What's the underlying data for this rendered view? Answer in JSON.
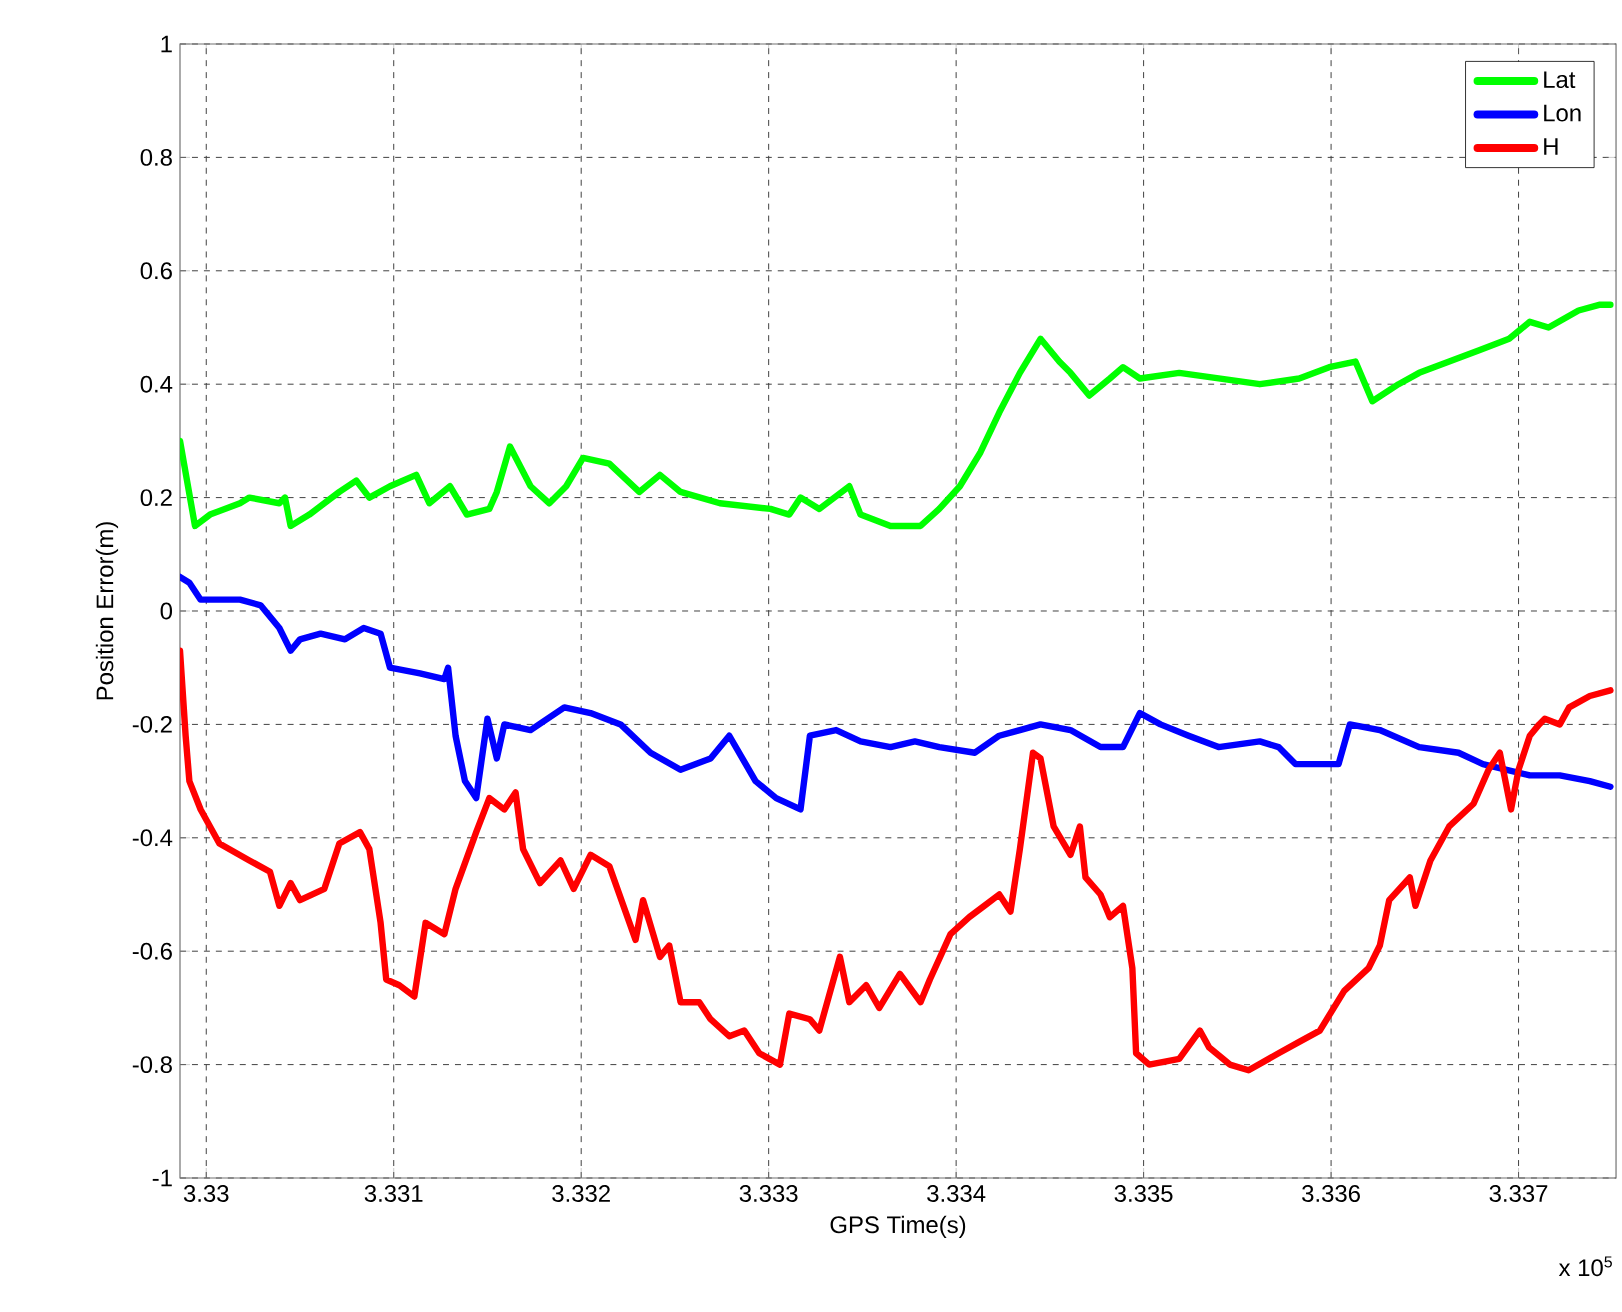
{
  "chart_data": {
    "type": "line",
    "xlabel": "GPS Time(s)",
    "ylabel": "Position Error(m)",
    "annotations": [
      "x 10$^{5}$"
    ],
    "xlim": [
      3.32986,
      3.33752
    ],
    "xticks": [
      3.33,
      3.331,
      3.332,
      3.333,
      3.334,
      3.335,
      3.336,
      3.337
    ],
    "ylim": [
      -1,
      1
    ],
    "yticks": [
      -1,
      -0.8,
      -0.6,
      -0.4,
      -0.2,
      0,
      0.2,
      0.4,
      0.6,
      0.8,
      1
    ],
    "grid": true,
    "legend": "top right",
    "line_style": "solid",
    "series": [
      {
        "name": "Lat",
        "color": "#00ff00",
        "x": [
          3.32986,
          3.32994,
          3.33002,
          3.33018,
          3.33023,
          3.33039,
          3.33042,
          3.33045,
          3.33055,
          3.33071,
          3.3308,
          3.33087,
          3.33098,
          3.33112,
          3.33119,
          3.3313,
          3.33139,
          3.33151,
          3.33155,
          3.33162,
          3.33173,
          3.33183,
          3.33192,
          3.33201,
          3.33215,
          3.33231,
          3.33242,
          3.33253,
          3.33274,
          3.33301,
          3.33311,
          3.33317,
          3.33327,
          3.33343,
          3.33349,
          3.33365,
          3.33381,
          3.33391,
          3.33402,
          3.33413,
          3.33423,
          3.33434,
          3.33445,
          3.33455,
          3.33461,
          3.33471,
          3.33482,
          3.33489,
          3.33498,
          3.33519,
          3.33562,
          3.33583,
          3.33599,
          3.33613,
          3.33622,
          3.33636,
          3.33647,
          3.33663,
          3.33679,
          3.33695,
          3.33706,
          3.33716,
          3.33732,
          3.33743,
          3.33749
        ],
        "values": [
          0.3,
          0.15,
          0.17,
          0.19,
          0.2,
          0.19,
          0.2,
          0.15,
          0.17,
          0.21,
          0.23,
          0.2,
          0.22,
          0.24,
          0.19,
          0.22,
          0.17,
          0.18,
          0.21,
          0.29,
          0.22,
          0.19,
          0.22,
          0.27,
          0.26,
          0.21,
          0.24,
          0.21,
          0.19,
          0.18,
          0.17,
          0.2,
          0.18,
          0.22,
          0.17,
          0.15,
          0.15,
          0.18,
          0.22,
          0.28,
          0.35,
          0.42,
          0.48,
          0.44,
          0.42,
          0.38,
          0.41,
          0.43,
          0.41,
          0.42,
          0.4,
          0.41,
          0.43,
          0.44,
          0.37,
          0.4,
          0.42,
          0.44,
          0.46,
          0.48,
          0.51,
          0.5,
          0.53,
          0.54,
          0.54
        ]
      },
      {
        "name": "Lon",
        "color": "#0000ff",
        "x": [
          3.32986,
          3.32991,
          3.32997,
          3.33018,
          3.33029,
          3.33039,
          3.33045,
          3.3305,
          3.33061,
          3.33074,
          3.33084,
          3.33093,
          3.33098,
          3.33114,
          3.33127,
          3.33129,
          3.33133,
          3.33138,
          3.33144,
          3.3315,
          3.33155,
          3.33159,
          3.33173,
          3.33191,
          3.33205,
          3.33221,
          3.33237,
          3.33253,
          3.33269,
          3.33279,
          3.33293,
          3.33304,
          3.33317,
          3.33322,
          3.33336,
          3.33349,
          3.33365,
          3.33378,
          3.33391,
          3.3341,
          3.33423,
          3.33434,
          3.33445,
          3.33461,
          3.33477,
          3.33489,
          3.33498,
          3.33509,
          3.33524,
          3.3354,
          3.33562,
          3.33572,
          3.33581,
          3.33604,
          3.3361,
          3.33626,
          3.33647,
          3.33668,
          3.33681,
          3.33706,
          3.33722,
          3.33738,
          3.33749
        ],
        "values": [
          0.06,
          0.05,
          0.02,
          0.02,
          0.01,
          -0.03,
          -0.07,
          -0.05,
          -0.04,
          -0.05,
          -0.03,
          -0.04,
          -0.1,
          -0.11,
          -0.12,
          -0.1,
          -0.22,
          -0.3,
          -0.33,
          -0.19,
          -0.26,
          -0.2,
          -0.21,
          -0.17,
          -0.18,
          -0.2,
          -0.25,
          -0.28,
          -0.26,
          -0.22,
          -0.3,
          -0.33,
          -0.35,
          -0.22,
          -0.21,
          -0.23,
          -0.24,
          -0.23,
          -0.24,
          -0.25,
          -0.22,
          -0.21,
          -0.2,
          -0.21,
          -0.24,
          -0.24,
          -0.18,
          -0.2,
          -0.22,
          -0.24,
          -0.23,
          -0.24,
          -0.27,
          -0.27,
          -0.2,
          -0.21,
          -0.24,
          -0.25,
          -0.27,
          -0.29,
          -0.29,
          -0.3,
          -0.31
        ]
      },
      {
        "name": "H",
        "color": "#ff0000",
        "x": [
          3.32986,
          3.32989,
          3.32991,
          3.32997,
          3.33002,
          3.33007,
          3.33023,
          3.33034,
          3.33039,
          3.33045,
          3.3305,
          3.33063,
          3.33071,
          3.33082,
          3.33087,
          3.33093,
          3.33096,
          3.33103,
          3.33111,
          3.33117,
          3.33127,
          3.33133,
          3.33144,
          3.33151,
          3.33159,
          3.33165,
          3.33169,
          3.33178,
          3.33189,
          3.33196,
          3.33205,
          3.33215,
          3.33229,
          3.33233,
          3.33242,
          3.33247,
          3.33253,
          3.33263,
          3.33269,
          3.33279,
          3.33287,
          3.33295,
          3.33306,
          3.33311,
          3.33322,
          3.33327,
          3.33338,
          3.33343,
          3.33352,
          3.33359,
          3.3337,
          3.33381,
          3.33386,
          3.33397,
          3.33407,
          3.33415,
          3.33423,
          3.33429,
          3.33434,
          3.33441,
          3.33445,
          3.33452,
          3.33461,
          3.33466,
          3.33469,
          3.33477,
          3.33482,
          3.33489,
          3.33494,
          3.33496,
          3.33503,
          3.33519,
          3.3353,
          3.33535,
          3.33546,
          3.33556,
          3.33572,
          3.33583,
          3.33594,
          3.33607,
          3.3362,
          3.33626,
          3.33631,
          3.33642,
          3.33645,
          3.33653,
          3.33663,
          3.33676,
          3.33684,
          3.3369,
          3.33696,
          3.337,
          3.33706,
          3.33711,
          3.33714,
          3.33722,
          3.33727,
          3.33738,
          3.33749
        ],
        "values": [
          -0.07,
          -0.22,
          -0.3,
          -0.35,
          -0.38,
          -0.41,
          -0.44,
          -0.46,
          -0.52,
          -0.48,
          -0.51,
          -0.49,
          -0.41,
          -0.39,
          -0.42,
          -0.55,
          -0.65,
          -0.66,
          -0.68,
          -0.55,
          -0.57,
          -0.49,
          -0.39,
          -0.33,
          -0.35,
          -0.32,
          -0.42,
          -0.48,
          -0.44,
          -0.49,
          -0.43,
          -0.45,
          -0.58,
          -0.51,
          -0.61,
          -0.59,
          -0.69,
          -0.69,
          -0.72,
          -0.75,
          -0.74,
          -0.78,
          -0.8,
          -0.71,
          -0.72,
          -0.74,
          -0.61,
          -0.69,
          -0.66,
          -0.7,
          -0.64,
          -0.69,
          -0.65,
          -0.57,
          -0.54,
          -0.52,
          -0.5,
          -0.53,
          -0.42,
          -0.25,
          -0.26,
          -0.38,
          -0.43,
          -0.38,
          -0.47,
          -0.5,
          -0.54,
          -0.52,
          -0.63,
          -0.78,
          -0.8,
          -0.79,
          -0.74,
          -0.77,
          -0.8,
          -0.81,
          -0.78,
          -0.76,
          -0.74,
          -0.67,
          -0.63,
          -0.59,
          -0.51,
          -0.47,
          -0.52,
          -0.44,
          -0.38,
          -0.34,
          -0.28,
          -0.25,
          -0.35,
          -0.28,
          -0.22,
          -0.2,
          -0.19,
          -0.2,
          -0.17,
          -0.15,
          -0.14
        ]
      }
    ]
  }
}
